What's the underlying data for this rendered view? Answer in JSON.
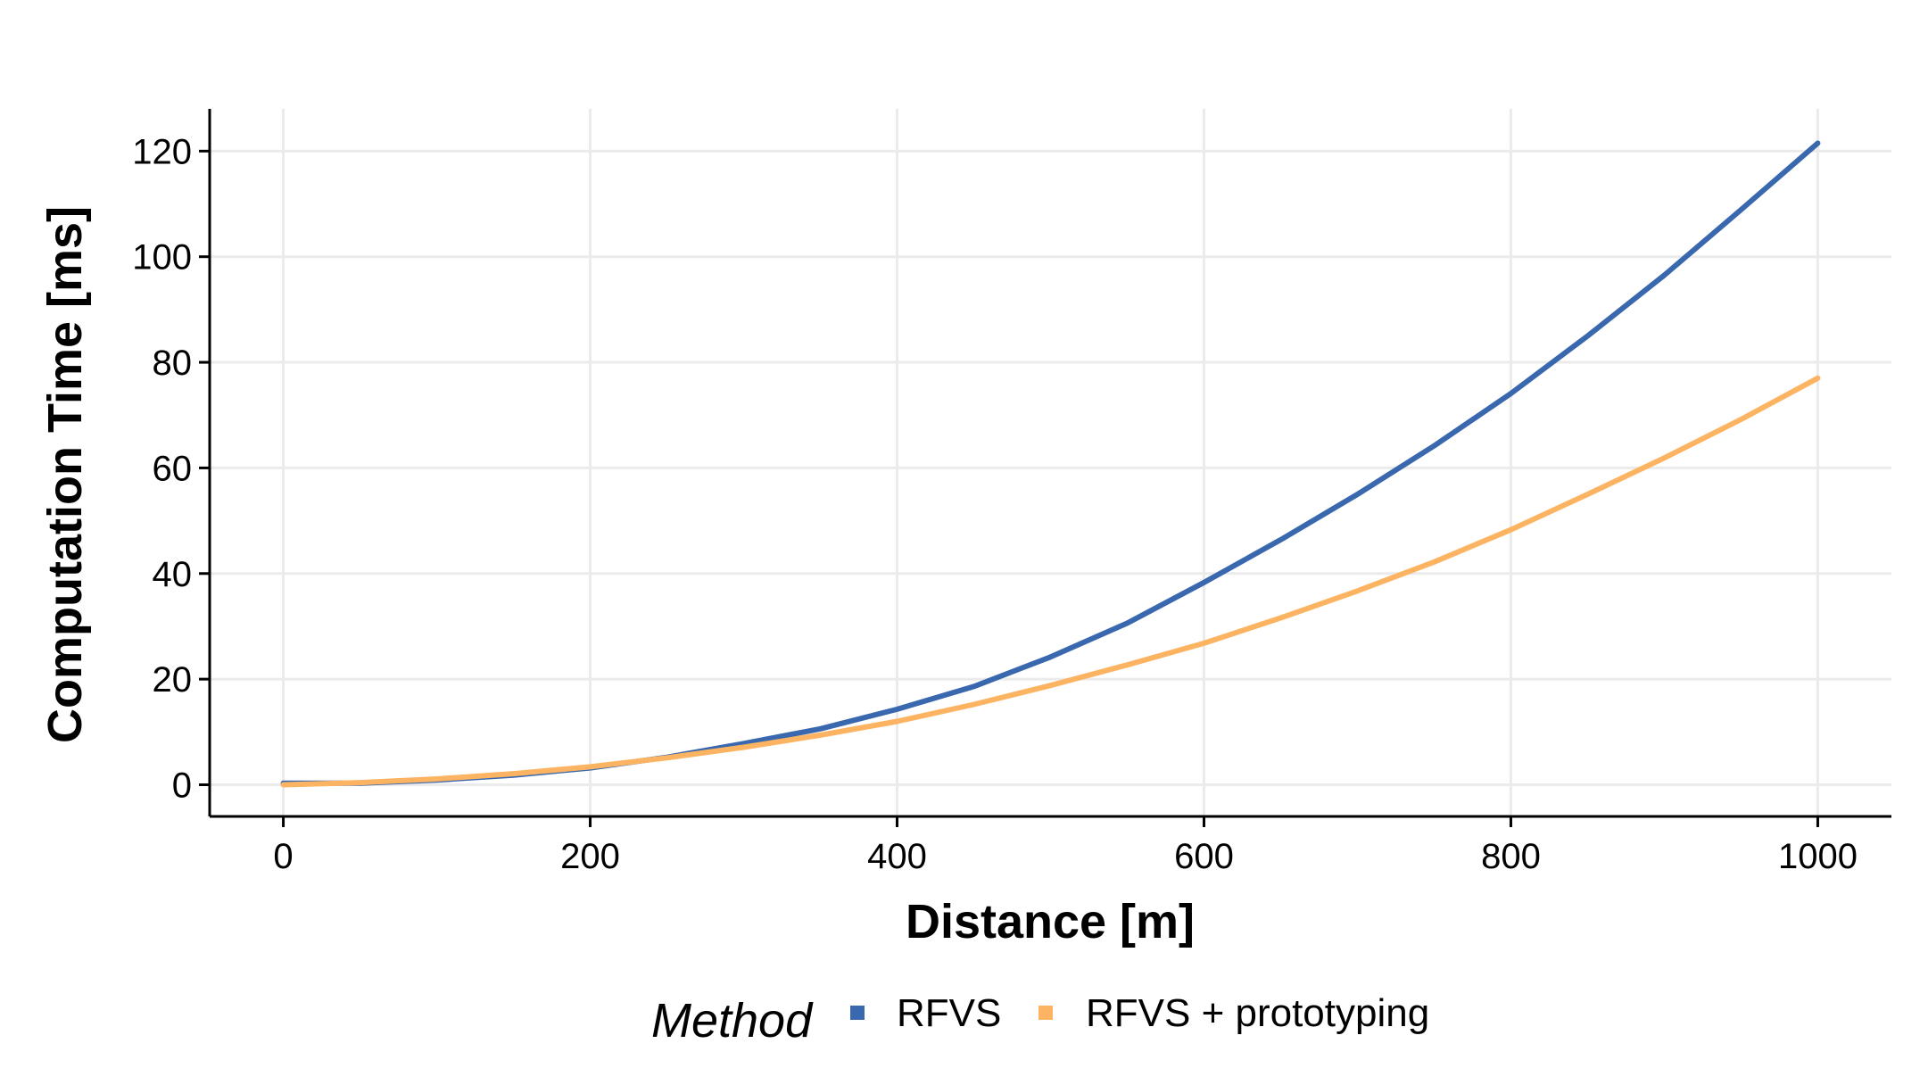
{
  "chart_data": {
    "type": "line",
    "xlabel": "Distance [m]",
    "ylabel": "Computation Time [ms]",
    "xlim": [
      -48,
      1048
    ],
    "ylim": [
      -6,
      128
    ],
    "xticks": [
      0,
      200,
      400,
      600,
      800,
      1000
    ],
    "yticks": [
      0,
      20,
      40,
      60,
      80,
      100,
      120
    ],
    "grid": true,
    "legend_title": "Method",
    "legend_position": "bottom",
    "x": [
      0,
      50,
      100,
      150,
      200,
      250,
      300,
      350,
      400,
      450,
      500,
      550,
      600,
      650,
      700,
      750,
      800,
      850,
      900,
      950,
      1000
    ],
    "series": [
      {
        "name": "RFVS",
        "color": "#3a68ae",
        "values": [
          0.3,
          0.3,
          0.9,
          1.8,
          3.2,
          5.2,
          7.8,
          10.6,
          14.3,
          18.6,
          24.2,
          30.6,
          38.3,
          46.4,
          55.0,
          64.2,
          74.1,
          85.0,
          96.5,
          108.9,
          121.5
        ]
      },
      {
        "name": "RFVS + prototyping",
        "color": "#fdb462",
        "values": [
          0.0,
          0.4,
          1.1,
          2.1,
          3.4,
          5.1,
          7.1,
          9.4,
          12.0,
          15.2,
          18.8,
          22.7,
          26.8,
          31.6,
          36.7,
          42.2,
          48.3,
          55.0,
          61.9,
          69.2,
          77.0
        ]
      }
    ]
  }
}
